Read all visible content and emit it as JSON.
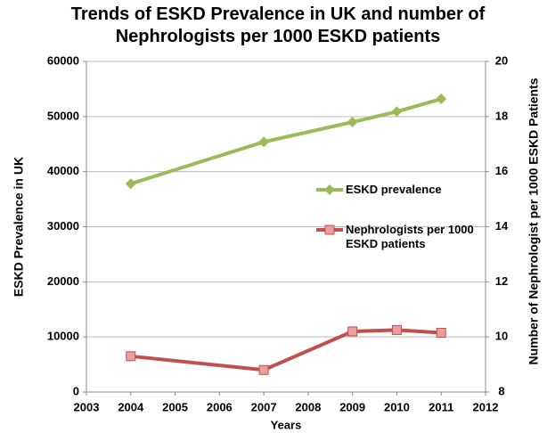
{
  "chart_data": {
    "type": "line",
    "title": "Trends of ESKD Prevalence in UK and number of Nephrologists per 1000 ESKD patients",
    "x_label": "Years",
    "y_label": "ESKD Prevalence in UK",
    "y2_label": "Number of Nephrologist per 1000 ESKD Patients",
    "x": [
      2004,
      2007,
      2009,
      2010,
      2011
    ],
    "xlim": [
      2003,
      2012
    ],
    "xticks": [
      2003,
      2004,
      2005,
      2006,
      2007,
      2008,
      2009,
      2010,
      2011,
      2012
    ],
    "ylim": [
      0,
      60000
    ],
    "yticks": [
      0,
      10000,
      20000,
      30000,
      40000,
      50000,
      60000
    ],
    "y2lim": [
      8,
      20
    ],
    "y2ticks": [
      8,
      10,
      12,
      14,
      16,
      18,
      20
    ],
    "grid": true,
    "legend": "right",
    "series": [
      {
        "name": "ESKD prevalence",
        "color": "#9bbb59",
        "marker": "diamond",
        "values": [
          37800,
          45400,
          49000,
          50900,
          53200
        ]
      },
      {
        "name": "Nephrologists per 1000 ESKD patients",
        "color": "#c0504d",
        "marker": "square",
        "axis": "y2",
        "values": [
          9.3,
          8.8,
          10.2,
          10.25,
          10.15
        ]
      }
    ]
  }
}
